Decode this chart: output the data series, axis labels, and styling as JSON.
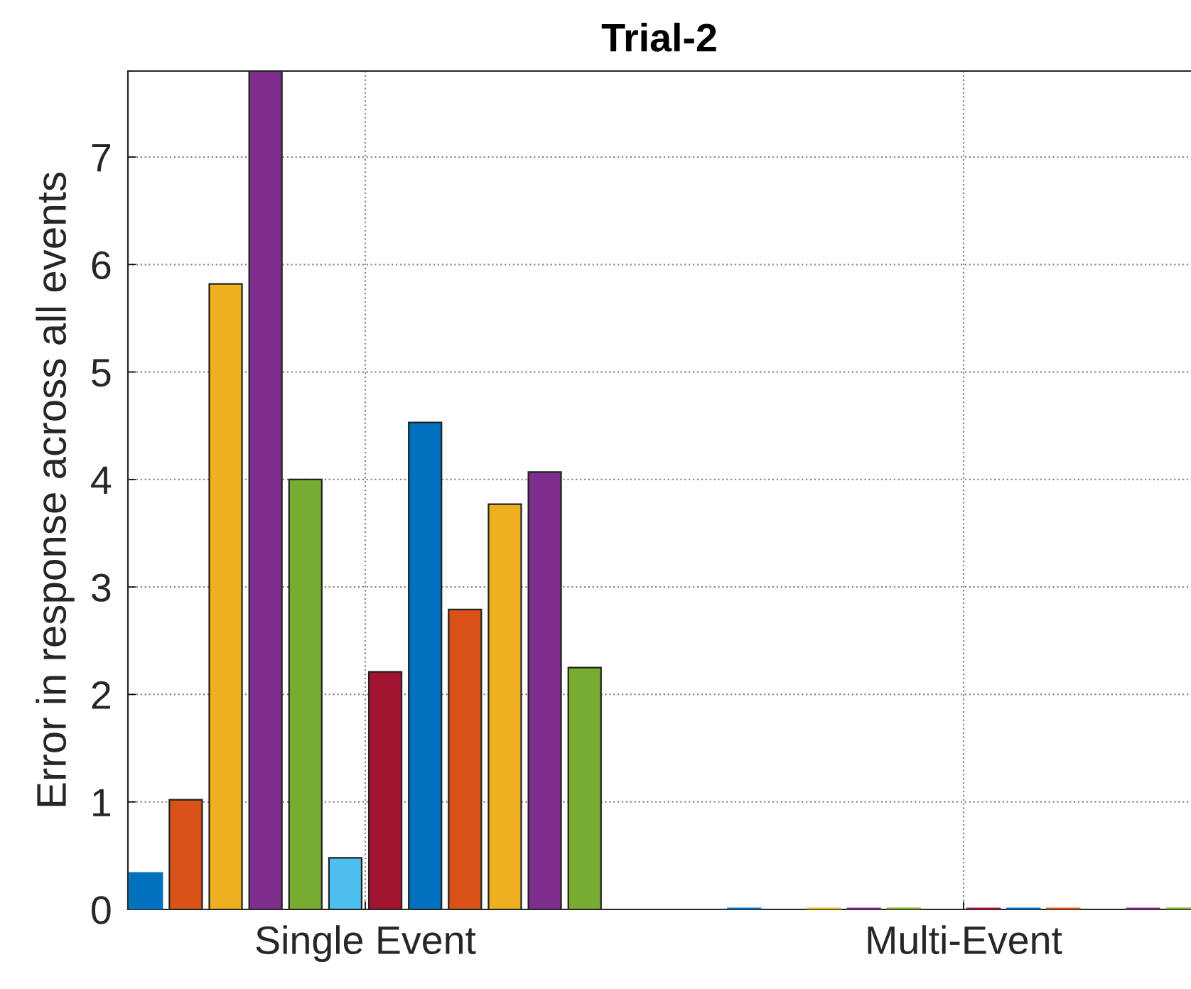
{
  "chart_data": {
    "type": "bar",
    "title": "Trial-2",
    "ylabel": "Error in response across all events",
    "categories": [
      "Single Event",
      "Multi-Event"
    ],
    "series": [
      {
        "color": "#0072bd",
        "values": [
          0.34,
          0.01
        ]
      },
      {
        "color": "#d95319",
        "values": [
          1.02,
          null
        ]
      },
      {
        "color": "#edb120",
        "values": [
          5.82,
          0.01
        ]
      },
      {
        "color": "#7e2f8e",
        "values": [
          7.8,
          0.01
        ]
      },
      {
        "color": "#77ac30",
        "values": [
          4.0,
          0.01
        ]
      },
      {
        "color": "#4dbeee",
        "values": [
          0.48,
          null
        ]
      },
      {
        "color": "#a2142f",
        "values": [
          2.21,
          0.01
        ]
      },
      {
        "color": "#0072bd",
        "values": [
          4.53,
          0.01
        ]
      },
      {
        "color": "#d95319",
        "values": [
          2.79,
          0.01
        ]
      },
      {
        "color": "#edb120",
        "values": [
          3.77,
          null
        ]
      },
      {
        "color": "#7e2f8e",
        "values": [
          4.07,
          0.01
        ]
      },
      {
        "color": "#77ac30",
        "values": [
          2.25,
          0.01
        ]
      }
    ],
    "ylim": [
      0,
      7.8
    ],
    "yticks": [
      0,
      1,
      2,
      3,
      4,
      5,
      6,
      7
    ],
    "grid": true,
    "legend": false
  }
}
